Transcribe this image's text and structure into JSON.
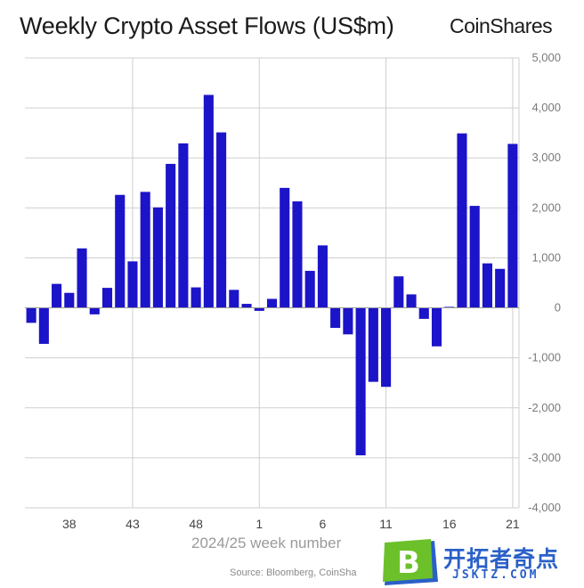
{
  "title": "Weekly Crypto Asset Flows (US$m)",
  "brand": "CoinShares",
  "source": "Source: Bloomberg, CoinSha",
  "watermark": {
    "text": "开拓者奇点",
    "domain": "JSKTZ.COM"
  },
  "colors": {
    "bar": "#1c14c8",
    "grid": "#cfcfcf",
    "watermark_green": "#6cc12a",
    "watermark_blue": "#2a60c8"
  },
  "chart_data": {
    "type": "bar",
    "title": "Weekly Crypto Asset Flows (US$m)",
    "xlabel": "2024/25 week number",
    "ylabel": "",
    "ylim": [
      -4000,
      5000
    ],
    "y_ticks": [
      "5,000",
      "4,000",
      "3,000",
      "2,000",
      "1,000",
      "0",
      "-1,000",
      "-2,000",
      "-3,000",
      "-4,000"
    ],
    "y_tick_values": [
      5000,
      4000,
      3000,
      2000,
      1000,
      0,
      -1000,
      -2000,
      -3000,
      -4000
    ],
    "x_tick_labels": [
      "38",
      "43",
      "48",
      "1",
      "6",
      "11",
      "16",
      "21"
    ],
    "x_tick_indices": [
      3,
      8,
      13,
      18,
      23,
      28,
      33,
      38
    ],
    "x_grid_indices": [
      8.5,
      18.5,
      28.5,
      38.5
    ],
    "grid": true,
    "legend": "none",
    "categories": [
      "35",
      "36",
      "37",
      "38",
      "39",
      "40",
      "41",
      "42",
      "43",
      "44",
      "45",
      "46",
      "47",
      "48",
      "49",
      "50",
      "51",
      "52",
      "1",
      "2",
      "3",
      "4",
      "5",
      "6",
      "7",
      "8",
      "9",
      "10",
      "11",
      "12",
      "13",
      "14",
      "15",
      "16",
      "17",
      "18",
      "19",
      "20",
      "21"
    ],
    "values": [
      -300,
      -720,
      480,
      300,
      1190,
      -130,
      400,
      2260,
      930,
      2320,
      2010,
      2880,
      3290,
      410,
      4260,
      3510,
      360,
      80,
      -60,
      180,
      2400,
      2130,
      740,
      1250,
      -400,
      -530,
      -2950,
      -1480,
      -1580,
      630,
      270,
      -220,
      -770,
      20,
      3490,
      2040,
      890,
      780,
      3280
    ]
  }
}
